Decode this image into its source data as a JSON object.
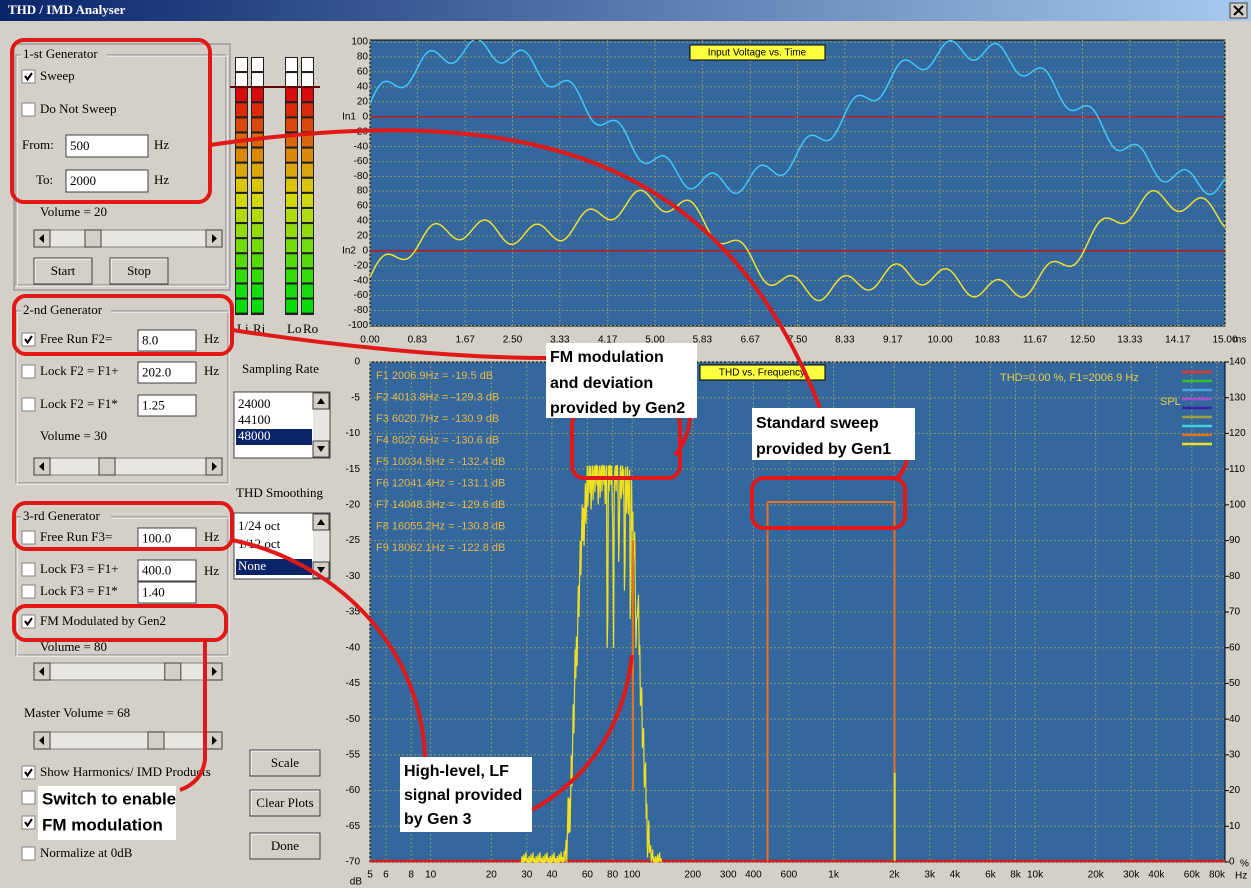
{
  "window": {
    "title": "THD / IMD Analyser"
  },
  "gen1": {
    "title": "1-st Generator",
    "sweep": "Sweep",
    "no_sweep": "Do Not Sweep",
    "from_label": "From:",
    "from": "500",
    "from_unit": "Hz",
    "to_label": "To:",
    "to": "2000",
    "to_unit": "Hz",
    "volume": "Volume = 20",
    "start": "Start",
    "stop": "Stop"
  },
  "gen2": {
    "title": "2-nd Generator",
    "free_run": "Free Run F2=",
    "free_run_value": "8.0",
    "free_run_unit": "Hz",
    "lock_add": "Lock F2 = F1+",
    "lock_add_value": "202.0",
    "lock_add_unit": "Hz",
    "lock_mul": "Lock F2 = F1*",
    "lock_mul_value": "1.25",
    "volume": "Volume = 30"
  },
  "gen3": {
    "title": "3-rd Generator",
    "free_run": "Free Run F3=",
    "free_run_value": "100.0",
    "free_run_unit": "Hz",
    "lock_add": "Lock F3 = F1+",
    "lock_add_value": "400.0",
    "lock_add_unit": "Hz",
    "lock_mul": "Lock F3 = F1*",
    "lock_mul_value": "1.40",
    "fm": "FM Modulated by Gen2",
    "volume": "Volume = 80"
  },
  "meters": [
    "Li",
    "Ri",
    "Lo",
    "Ro"
  ],
  "sampling_rate": {
    "label": "Sampling Rate",
    "options": [
      "24000",
      "44100",
      "48000"
    ],
    "selected": 2
  },
  "thd_smoothing": {
    "label": "THD Smoothing",
    "options": [
      "1/24 oct",
      "1/12 oct",
      "None"
    ],
    "selected": 2
  },
  "master_volume": "Master Volume = 68",
  "show_harmonics": "Show Harmonics/ IMD Products",
  "normalize": "Normalize at 0dB",
  "buttons": [
    "Scale",
    "Clear Plots",
    "Done"
  ],
  "time_plot": {
    "title": "Input Voltage vs. Time",
    "in1_label": "In1",
    "in2_label": "In2",
    "in1_ticks": [
      100,
      80,
      60,
      40,
      20,
      0,
      -20,
      -40,
      -60,
      -80
    ],
    "in2_ticks": [
      80,
      60,
      40,
      20,
      0,
      -20,
      -40,
      -60,
      -80,
      -100
    ],
    "x_ticks": [
      {
        "value": 0,
        "label": "0.00"
      },
      0.83,
      1.67,
      {
        "value": 2.5,
        "label": "2.50"
      },
      3.33,
      4.17,
      {
        "value": 5,
        "label": "5.00"
      },
      5.83,
      6.67,
      {
        "value": 7.5,
        "label": "7.50"
      },
      8.33,
      9.17,
      {
        "value": 10,
        "label": "10.00"
      },
      10.83,
      11.67,
      {
        "value": 12.5,
        "label": "12.50"
      },
      13.33,
      14.17,
      {
        "value": 15,
        "label": "15.00"
      }
    ],
    "x_unit": "ms"
  },
  "thd_plot": {
    "title": "THD vs. Frequency",
    "y_ticks": [
      0,
      -5,
      -10,
      -15,
      -20,
      -25,
      -30,
      -35,
      -40,
      -45,
      -50,
      -55,
      -60,
      -65,
      -70
    ],
    "y_unit": "dB",
    "y2_ticks": [
      140,
      130,
      120,
      110,
      100,
      90,
      80,
      70,
      60,
      50,
      40,
      30,
      20,
      10,
      0
    ],
    "y2_unit": "%",
    "x_ticks": [
      5,
      6,
      8,
      10,
      20,
      30,
      40,
      60,
      80,
      100,
      200,
      300,
      400,
      600,
      {
        "value": 1000,
        "label": "1k"
      },
      {
        "value": 2000,
        "label": "2k"
      },
      {
        "value": 3000,
        "label": "3k"
      },
      {
        "value": 4000,
        "label": "4k"
      },
      {
        "value": 6000,
        "label": "6k"
      },
      {
        "value": 8000,
        "label": "8k"
      },
      {
        "value": 10000,
        "label": "10k"
      },
      {
        "value": 20000,
        "label": "20k"
      },
      {
        "value": 30000,
        "label": "30k"
      },
      {
        "value": 40000,
        "label": "40k"
      },
      {
        "value": 60000,
        "label": "60k"
      },
      {
        "value": 80000,
        "label": "80k"
      }
    ],
    "x_unit": "Hz",
    "legend": [
      {
        "text": "F1 2006.9Hz = -19.5 dB",
        "color": "#e03a2a"
      },
      {
        "text": "F2 4013.8Hz = -129.3 dB",
        "color": "#30c030"
      },
      {
        "text": "F3 6020.7Hz = -130.9 dB",
        "color": "#4aa0e0"
      },
      {
        "text": "F4 8027.6Hz = -130.6 dB",
        "color": "#a050d0"
      },
      {
        "text": "F5 10034.5Hz = -132.4 dB",
        "color": "#4020a0"
      },
      {
        "text": "F6 12041.4Hz = -131.1 dB",
        "color": "#a0a040"
      },
      {
        "text": "F7 14048.3Hz = -129.6 dB",
        "color": "#40d0e0"
      },
      {
        "text": "F8 16055.2Hz = -130.8 dB",
        "color": "#e07020"
      },
      {
        "text": "F9 18062.1Hz = -122.8 dB",
        "color": "#f0e020"
      }
    ],
    "summary": "THD=0.00 %, F1=2006.9 Hz",
    "spl": "SPL"
  },
  "annotations": {
    "fm_note": [
      "FM modulation",
      "and deviation",
      "provided by Gen2"
    ],
    "sweep_note": [
      "Standard sweep",
      "provided by Gen1"
    ],
    "lf_note": [
      "High-level, LF",
      "signal provided",
      "by Gen 3"
    ],
    "switch_note": [
      "Switch to enable",
      "FM modulation"
    ]
  }
}
